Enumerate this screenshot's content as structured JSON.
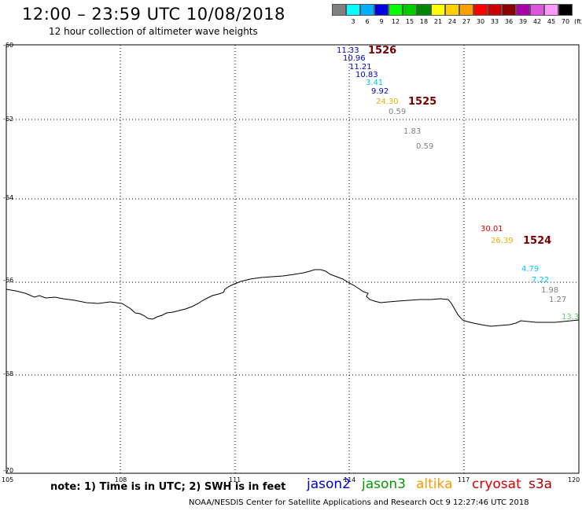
{
  "header": {
    "title": "12:00 – 23:59 UTC 10/08/2018",
    "subtitle": "12 hour collection of altimeter wave heights"
  },
  "legend": {
    "swatches": [
      {
        "label": "",
        "color": "#808080"
      },
      {
        "label": "3",
        "color": "#00ffff"
      },
      {
        "label": "6",
        "color": "#00b0ff"
      },
      {
        "label": "9",
        "color": "#0000e0"
      },
      {
        "label": "12",
        "color": "#00ff00"
      },
      {
        "label": "15",
        "color": "#00cc00"
      },
      {
        "label": "18",
        "color": "#008800"
      },
      {
        "label": "21",
        "color": "#ffff00"
      },
      {
        "label": "24",
        "color": "#ffd000"
      },
      {
        "label": "27",
        "color": "#ffa000"
      },
      {
        "label": "30",
        "color": "#ff0000"
      },
      {
        "label": "33",
        "color": "#cc0000"
      },
      {
        "label": "36",
        "color": "#880000"
      },
      {
        "label": "39",
        "color": "#aa00aa"
      },
      {
        "label": "42",
        "color": "#dd55dd"
      },
      {
        "label": "45",
        "color": "#ff99ff"
      },
      {
        "label": "70",
        "color": "#000000"
      }
    ],
    "unit": "(ft)"
  },
  "map": {
    "lat_labels": [
      "-60",
      "-62",
      "-64",
      "-66",
      "-68",
      "-70"
    ],
    "lon_labels": [
      "105",
      "108",
      "111",
      "114",
      "117",
      "120"
    ]
  },
  "observations": [
    {
      "text": "11.33",
      "color": "#0000cc"
    },
    {
      "text": "10.96",
      "color": "#0000cc"
    },
    {
      "text": "11.21",
      "color": "#0000cc"
    },
    {
      "text": "10.83",
      "color": "#0000cc"
    },
    {
      "text": "3.41",
      "color": "#00c8e0"
    },
    {
      "text": "9.92",
      "color": "#0000cc"
    },
    {
      "text": "24.30",
      "color": "#e8b000"
    },
    {
      "text": "0.59",
      "color": "#808080"
    },
    {
      "text": "1.83",
      "color": "#808080"
    },
    {
      "text": "0.59",
      "color": "#808080"
    },
    {
      "text": "30.01",
      "color": "#e00000"
    },
    {
      "text": "26.39",
      "color": "#e8b000"
    },
    {
      "text": "4.79",
      "color": "#00c8e0"
    },
    {
      "text": "7.22",
      "color": "#00c8e0"
    },
    {
      "text": "1.98",
      "color": "#808080"
    },
    {
      "text": "1.27",
      "color": "#808080"
    },
    {
      "text": "13.30",
      "color": "#60d060"
    }
  ],
  "tracks": [
    "1526",
    "1525",
    "1524"
  ],
  "footer": {
    "note": "note: 1) Time is in UTC; 2) SWH is in feet",
    "satellites": [
      {
        "name": "jason2",
        "color": "#0000cc"
      },
      {
        "name": "jason3",
        "color": "#009900"
      },
      {
        "name": "altika",
        "color": "#ff9900"
      },
      {
        "name": "cryosat",
        "color": "#dd0000"
      },
      {
        "name": "s3a",
        "color": "#aa0000"
      }
    ],
    "credit": "NOAA/NESDIS Center for Satellite Applications and Research    Oct  9 12:27:46 UTC 2018"
  }
}
